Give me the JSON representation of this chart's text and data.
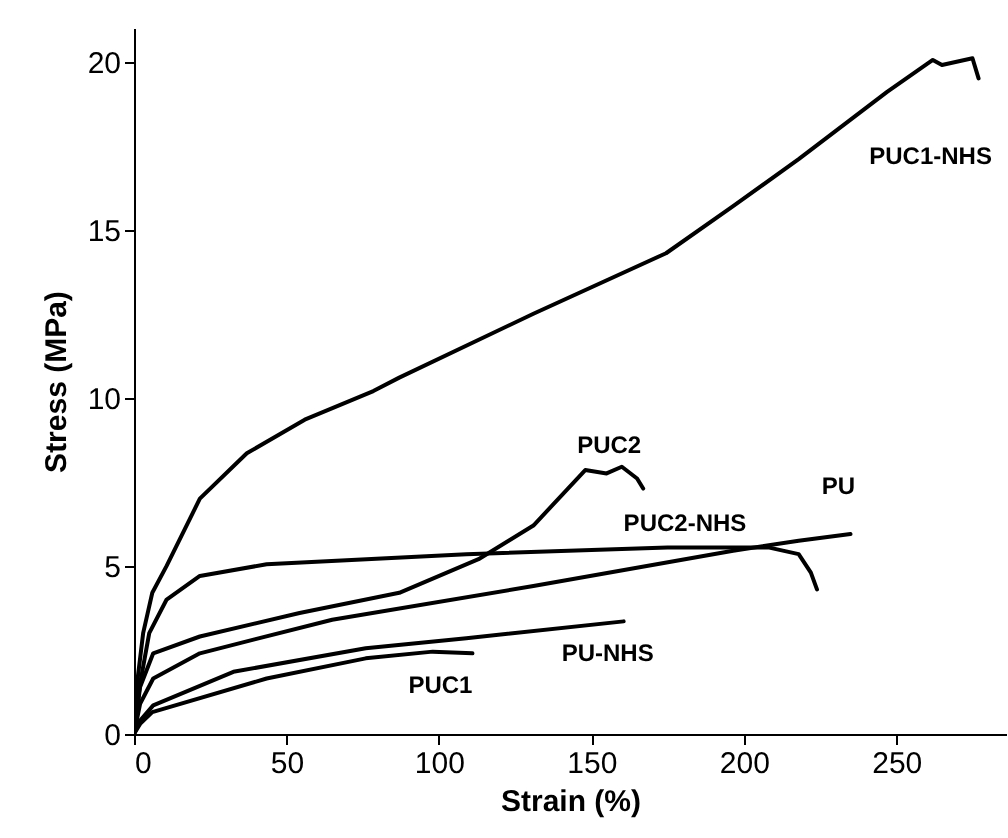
{
  "chart_data": {
    "type": "line",
    "xlabel": "Strain (%)",
    "ylabel": "Stress (MPa)",
    "xlim": [
      0,
      286
    ],
    "ylim": [
      0,
      21
    ],
    "xticks": [
      0,
      50,
      100,
      150,
      200,
      250
    ],
    "yticks": [
      0,
      5,
      10,
      15,
      20
    ],
    "grid": false,
    "marker": "none",
    "line_style": "solid",
    "series": [
      {
        "name": "PUC1-NHS",
        "color": "#000000",
        "x": [
          0,
          1,
          3,
          6,
          10.7,
          21.6,
          37,
          56,
          78.5,
          87,
          131,
          174.5,
          196.5,
          218,
          247,
          262,
          265,
          275,
          277
        ],
        "values": [
          0,
          1.5,
          3.0,
          4.2,
          5.0,
          7.0,
          8.35,
          9.35,
          10.2,
          10.6,
          12.5,
          14.3,
          15.7,
          17.1,
          19.1,
          20.05,
          19.9,
          20.1,
          19.5
        ]
      },
      {
        "name": "PUC2",
        "color": "#000000",
        "x": [
          0,
          2,
          6.3,
          21.6,
          54.3,
          87,
          113,
          131,
          148,
          155,
          160,
          165,
          167
        ],
        "values": [
          0,
          1.4,
          2.4,
          2.9,
          3.6,
          4.2,
          5.2,
          6.2,
          7.85,
          7.75,
          7.95,
          7.6,
          7.3
        ]
      },
      {
        "name": "PUC2-NHS",
        "color": "#000000",
        "x": [
          0,
          2,
          5,
          10.7,
          21.6,
          43.5,
          109,
          175,
          208,
          218,
          222,
          224
        ],
        "values": [
          0,
          1.5,
          3.0,
          4.0,
          4.7,
          5.05,
          5.35,
          5.55,
          5.55,
          5.35,
          4.8,
          4.3
        ]
      },
      {
        "name": "PU",
        "color": "#000000",
        "x": [
          0,
          2,
          6.3,
          21.6,
          65,
          131,
          196.5,
          218,
          235
        ],
        "values": [
          0,
          0.9,
          1.65,
          2.4,
          3.4,
          4.4,
          5.45,
          5.75,
          5.95
        ]
      },
      {
        "name": "PU-NHS",
        "color": "#000000",
        "x": [
          0,
          2,
          6.3,
          32.6,
          76,
          109,
          160.6
        ],
        "values": [
          0,
          0.4,
          0.85,
          1.85,
          2.55,
          2.85,
          3.35
        ]
      },
      {
        "name": "PUC1",
        "color": "#000000",
        "x": [
          0,
          2,
          6,
          43.5,
          76,
          98,
          111
        ],
        "values": [
          0,
          0.3,
          0.65,
          1.65,
          2.25,
          2.45,
          2.4
        ]
      }
    ]
  }
}
